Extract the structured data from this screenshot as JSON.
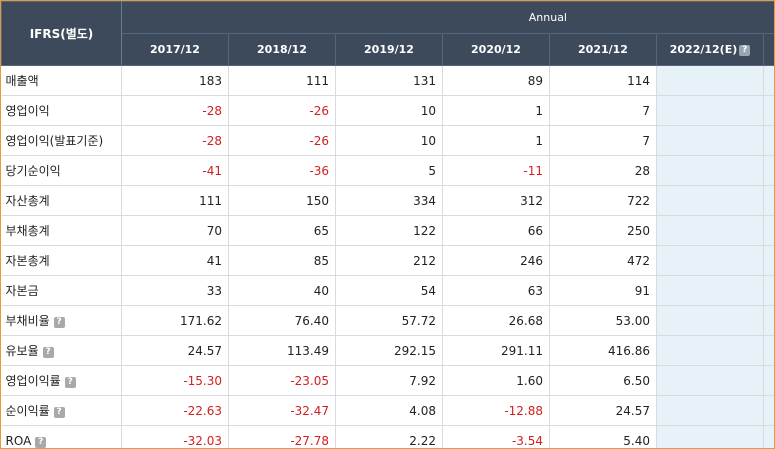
{
  "table": {
    "corner_label": "IFRS(별도)",
    "period_group": "Annual",
    "help_glyph": "?",
    "columns": [
      "2017/12",
      "2018/12",
      "2019/12",
      "2020/12",
      "2021/12",
      "2022/12(E)"
    ],
    "rows": [
      {
        "label": "매출액",
        "help": false,
        "values": [
          "183",
          "111",
          "131",
          "89",
          "114",
          ""
        ]
      },
      {
        "label": "영업이익",
        "help": false,
        "values": [
          "-28",
          "-26",
          "10",
          "1",
          "7",
          ""
        ]
      },
      {
        "label": "영업이익(발표기준)",
        "help": false,
        "values": [
          "-28",
          "-26",
          "10",
          "1",
          "7",
          ""
        ]
      },
      {
        "label": "당기순이익",
        "help": false,
        "values": [
          "-41",
          "-36",
          "5",
          "-11",
          "28",
          ""
        ]
      },
      {
        "label": "자산총계",
        "help": false,
        "values": [
          "111",
          "150",
          "334",
          "312",
          "722",
          ""
        ]
      },
      {
        "label": "부채총계",
        "help": false,
        "values": [
          "70",
          "65",
          "122",
          "66",
          "250",
          ""
        ]
      },
      {
        "label": "자본총계",
        "help": false,
        "values": [
          "41",
          "85",
          "212",
          "246",
          "472",
          ""
        ]
      },
      {
        "label": "자본금",
        "help": false,
        "values": [
          "33",
          "40",
          "54",
          "63",
          "91",
          ""
        ]
      },
      {
        "label": "부채비율",
        "help": true,
        "values": [
          "171.62",
          "76.40",
          "57.72",
          "26.68",
          "53.00",
          ""
        ]
      },
      {
        "label": "유보율",
        "help": true,
        "values": [
          "24.57",
          "113.49",
          "292.15",
          "291.11",
          "416.86",
          ""
        ]
      },
      {
        "label": "영업이익률",
        "help": true,
        "values": [
          "-15.30",
          "-23.05",
          "7.92",
          "1.60",
          "6.50",
          ""
        ]
      },
      {
        "label": "순이익률",
        "help": true,
        "values": [
          "-22.63",
          "-32.47",
          "4.08",
          "-12.88",
          "24.57",
          ""
        ]
      },
      {
        "label": "ROA",
        "help": true,
        "values": [
          "-32.03",
          "-27.78",
          "2.22",
          "-3.54",
          "5.40",
          ""
        ]
      }
    ]
  },
  "colors": {
    "header_bg": "#3c4a5b",
    "negative": "#d21f1f",
    "estimate_bg": "#e6f2f8",
    "frame_border": "#e79a3a"
  }
}
